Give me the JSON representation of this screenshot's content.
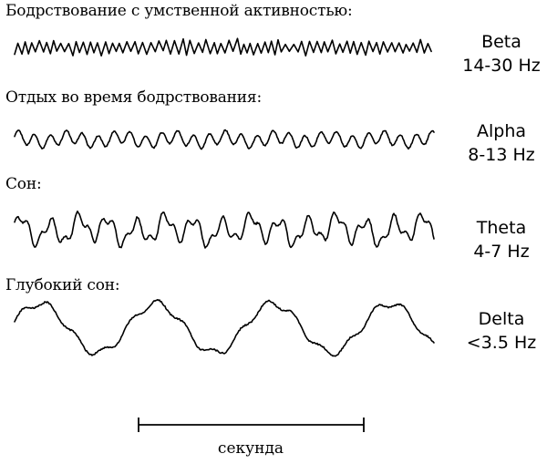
{
  "rows": [
    {
      "caption": "Бодрствование с умственной активностью:",
      "band": "Beta",
      "range": "14-30 Hz"
    },
    {
      "caption": "Отдых во время бодрствования:",
      "band": "Alpha",
      "range": "8-13 Hz"
    },
    {
      "caption": "Сон:",
      "band": "Theta",
      "range": "4-7 Hz"
    },
    {
      "caption": "Глубокий сон:",
      "band": "Delta",
      "range": "<3.5 Hz"
    }
  ],
  "scale": {
    "label": "секунда"
  },
  "colors": {
    "ink": "#000000",
    "background": "#ffffff"
  }
}
